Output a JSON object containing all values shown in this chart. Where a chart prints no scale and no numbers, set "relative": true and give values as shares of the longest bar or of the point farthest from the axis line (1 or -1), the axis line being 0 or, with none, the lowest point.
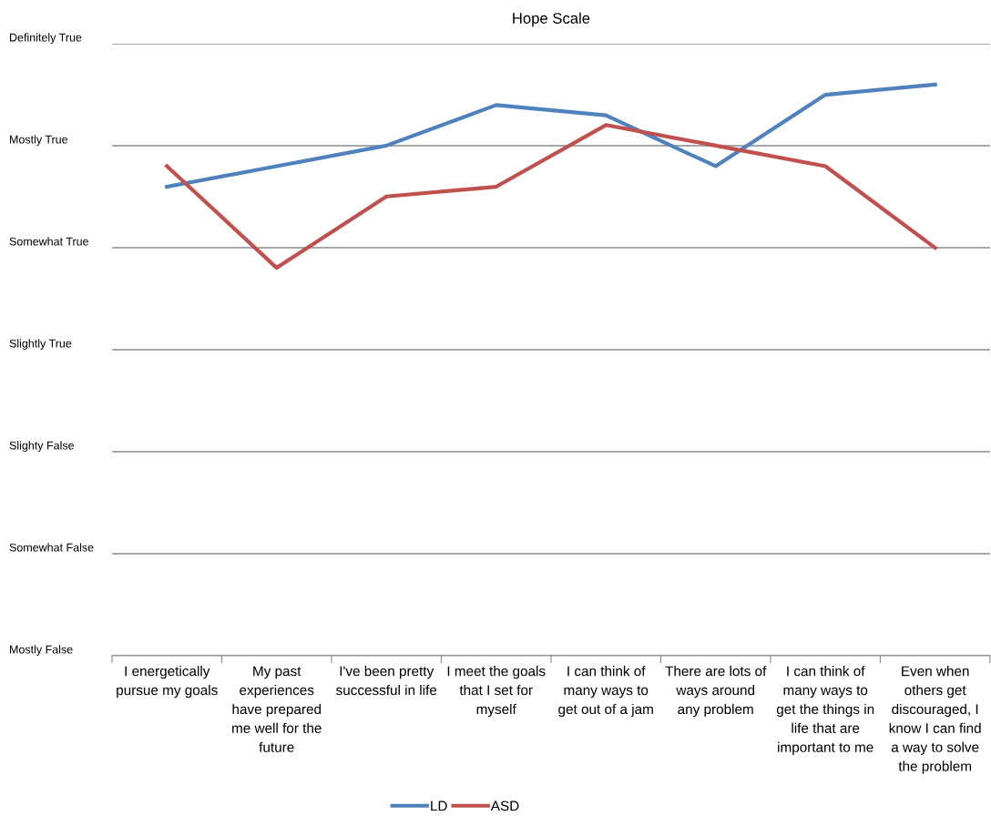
{
  "chart_data": {
    "type": "line",
    "title": "Hope Scale",
    "relative": true,
    "categories": [
      "I energetically\npursue my goals",
      "My past\nexperiences\nhave prepared\nme well for the\nfuture",
      "I've been pretty\nsuccessful in life",
      "I meet the goals\nthat I set for\nmyself",
      "I can think of\nmany ways to\nget out of a jam",
      "There are lots of\nways around\nany problem",
      "I can think of\nmany ways to\nget the things in\nlife that are\nimportant to me",
      "Even when\nothers get\ndiscouraged, I\nknow I can find\na way to solve\nthe problem"
    ],
    "series": [
      {
        "name": "LD",
        "color": "#4f81bd",
        "values": [
          0.821,
          0.857,
          0.893,
          0.964,
          0.946,
          0.857,
          0.982,
          1
        ]
      },
      {
        "name": "ASD",
        "color": "#c0504d",
        "values": [
          0.857,
          0.679,
          0.804,
          0.821,
          0.929,
          0.893,
          0.857,
          0.714
        ]
      }
    ],
    "annotations": [
      "Definitely True",
      "Mostly True",
      "Somewhat True",
      "Slightly True",
      "Slighty False",
      "Somewhat False",
      "Mostly False"
    ],
    "grid": "y",
    "legend": "bottom",
    "marker": "none",
    "line_style": "solid"
  }
}
